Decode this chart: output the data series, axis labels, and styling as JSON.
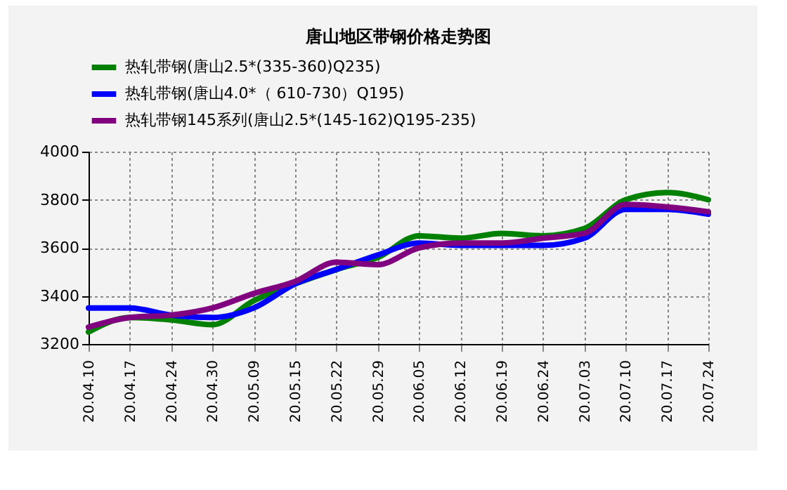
{
  "chart_data": {
    "type": "line",
    "title": "唐山地区带钢价格走势图",
    "categories": [
      "20.04.10",
      "20.04.17",
      "20.04.24",
      "20.04.30",
      "20.05.09",
      "20.05.15",
      "20.05.22",
      "20.05.29",
      "20.06.05",
      "20.06.12",
      "20.06.19",
      "20.06.24",
      "20.07.03",
      "20.07.10",
      "20.07.17",
      "20.07.24"
    ],
    "series": [
      {
        "name": "热轧带钢(唐山2.5*(335-360)Q235)",
        "color": "#008000",
        "values": [
          3250,
          3310,
          3300,
          3280,
          3380,
          3450,
          3510,
          3560,
          3650,
          3640,
          3660,
          3650,
          3680,
          3800,
          3830,
          3800
        ]
      },
      {
        "name": "热轧带钢(唐山4.0*（ 610-730）Q195)",
        "color": "#0000ff",
        "values": [
          3350,
          3350,
          3320,
          3310,
          3350,
          3450,
          3510,
          3570,
          3620,
          3610,
          3610,
          3610,
          3640,
          3760,
          3760,
          3740
        ]
      },
      {
        "name": "热轧带钢145系列(唐山2.5*(145-162)Q195-235)",
        "color": "#800080",
        "values": [
          3270,
          3310,
          3320,
          3350,
          3410,
          3460,
          3540,
          3530,
          3600,
          3620,
          3620,
          3640,
          3660,
          3780,
          3770,
          3750
        ]
      }
    ],
    "ylim": [
      3200,
      4000
    ],
    "yticks": [
      3200,
      3400,
      3600,
      3800,
      4000
    ],
    "grid": true,
    "legend": "top",
    "marker": "none",
    "line_style": "solid"
  }
}
